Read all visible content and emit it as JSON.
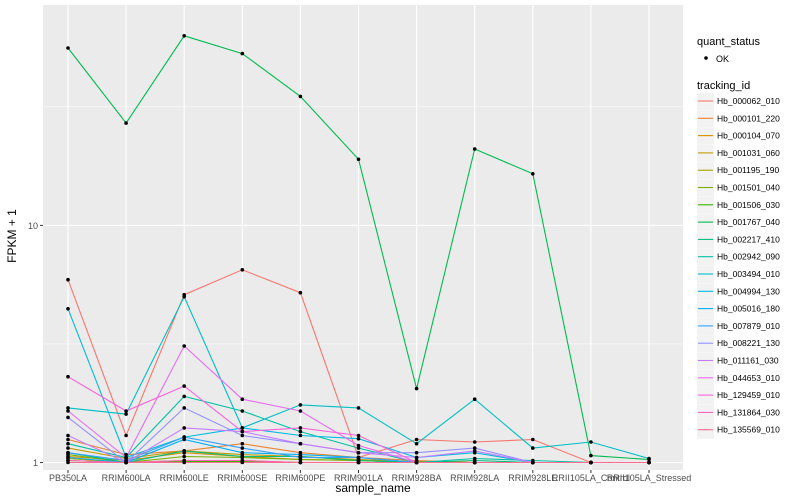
{
  "chart_data": {
    "type": "line",
    "xlabel": "sample_name",
    "ylabel": "FPKM + 1",
    "y_scale": "log10",
    "ylim": [
      0.93,
      85
    ],
    "y_ticks": [
      1,
      10
    ],
    "y_tick_labels": [
      "1",
      "10"
    ],
    "grid": true,
    "legend_position": "right",
    "categories": [
      "PB350LA",
      "RRIM600LA",
      "RRIM600LE",
      "RRIM600SE",
      "RRIM600PE",
      "RRIM901LA",
      "RRIM928BA",
      "RRIM928LA",
      "RRIM928LE",
      "RRII105LA_Control",
      "RRII105LA_Stressed"
    ],
    "series": [
      {
        "name": "Hb_000062_010",
        "color": "#F8766D",
        "values": [
          5.9,
          1.3,
          5.1,
          6.5,
          5.2,
          1.05,
          1.25,
          1.22,
          1.25,
          1.0,
          1.0
        ]
      },
      {
        "name": "Hb_000101_220",
        "color": "#EA8331",
        "values": [
          1.25,
          1.08,
          1.12,
          1.2,
          1.1,
          1.05,
          1.02,
          1.0,
          1.0,
          1.0,
          1.0
        ]
      },
      {
        "name": "Hb_000104_070",
        "color": "#D89000",
        "values": [
          1.06,
          1.02,
          1.1,
          1.06,
          1.03,
          1.02,
          1.0,
          1.0,
          1.0,
          1.0,
          1.0
        ]
      },
      {
        "name": "Hb_001031_060",
        "color": "#C09B00",
        "values": [
          1.15,
          1.04,
          1.12,
          1.08,
          1.06,
          1.03,
          1.01,
          1.0,
          1.0,
          1.0,
          1.0
        ]
      },
      {
        "name": "Hb_001195_190",
        "color": "#A3A500",
        "values": [
          1.04,
          1.0,
          1.02,
          1.02,
          1.0,
          1.0,
          1.0,
          1.0,
          1.0,
          1.0,
          1.0
        ]
      },
      {
        "name": "Hb_001501_040",
        "color": "#7CAE00",
        "values": [
          1.08,
          1.0,
          1.06,
          1.05,
          1.03,
          1.02,
          1.0,
          1.0,
          1.0,
          1.0,
          1.0
        ]
      },
      {
        "name": "Hb_001506_030",
        "color": "#39B600",
        "values": [
          1.02,
          1.0,
          1.01,
          1.01,
          1.0,
          1.0,
          1.0,
          1.0,
          1.0,
          1.0,
          1.0
        ]
      },
      {
        "name": "Hb_001767_040",
        "color": "#00BB4E",
        "values": [
          56,
          27,
          63,
          53,
          35,
          19,
          2.05,
          21,
          16.5,
          1.07,
          1.03
        ]
      },
      {
        "name": "Hb_002217_410",
        "color": "#00BF7D",
        "values": [
          1.1,
          1.0,
          1.12,
          1.06,
          1.06,
          1.02,
          1.0,
          1.02,
          1.0,
          1.0,
          1.0
        ]
      },
      {
        "name": "Hb_002942_090",
        "color": "#00C1A3",
        "values": [
          1.2,
          1.05,
          1.9,
          1.65,
          1.35,
          1.15,
          1.0,
          1.04,
          1.02,
          1.0,
          1.0
        ]
      },
      {
        "name": "Hb_003494_010",
        "color": "#00BFC4",
        "values": [
          1.7,
          1.6,
          5.0,
          1.4,
          1.75,
          1.7,
          1.2,
          1.85,
          1.15,
          1.22,
          1.04
        ]
      },
      {
        "name": "Hb_004994_130",
        "color": "#00BAE0",
        "values": [
          4.45,
          1.05,
          1.28,
          1.4,
          1.3,
          1.26,
          1.05,
          1.1,
          1.0,
          1.0,
          1.0
        ]
      },
      {
        "name": "Hb_005016_180",
        "color": "#00B0F6",
        "values": [
          1.05,
          1.0,
          1.25,
          1.1,
          1.08,
          1.05,
          1.0,
          1.0,
          1.0,
          1.0,
          1.0
        ]
      },
      {
        "name": "Hb_007879_010",
        "color": "#35A2FF",
        "values": [
          1.1,
          1.02,
          1.28,
          1.15,
          1.05,
          1.05,
          1.0,
          1.0,
          1.0,
          1.0,
          1.0
        ]
      },
      {
        "name": "Hb_008221_130",
        "color": "#9590FF",
        "values": [
          1.55,
          1.0,
          1.7,
          1.3,
          1.2,
          1.1,
          1.1,
          1.15,
          1.0,
          1.0,
          1.0
        ]
      },
      {
        "name": "Hb_011161_030",
        "color": "#C77CFF",
        "values": [
          1.3,
          1.0,
          1.4,
          1.35,
          1.2,
          1.1,
          1.05,
          1.12,
          1.0,
          1.0,
          1.0
        ]
      },
      {
        "name": "Hb_044653_010",
        "color": "#E76BF3",
        "values": [
          1.65,
          1.05,
          3.1,
          1.85,
          1.65,
          1.18,
          1.0,
          1.0,
          1.0,
          1.0,
          1.0
        ]
      },
      {
        "name": "Hb_129459_010",
        "color": "#FA62DB",
        "values": [
          2.3,
          1.65,
          2.1,
          1.35,
          1.4,
          1.3,
          1.0,
          1.0,
          1.0,
          1.0,
          1.0
        ]
      },
      {
        "name": "Hb_131864_030",
        "color": "#FF62BC",
        "values": [
          1.02,
          1.0,
          1.02,
          1.02,
          1.0,
          1.0,
          1.0,
          1.0,
          1.0,
          1.0,
          1.0
        ]
      },
      {
        "name": "Hb_135569_010",
        "color": "#FF6C91",
        "values": [
          1.0,
          1.0,
          1.0,
          1.0,
          1.0,
          1.0,
          1.0,
          1.0,
          1.0,
          1.0,
          1.0
        ]
      }
    ]
  },
  "legend": {
    "quant_status_title": "quant_status",
    "quant_status_value": "OK",
    "tracking_title": "tracking_id"
  }
}
